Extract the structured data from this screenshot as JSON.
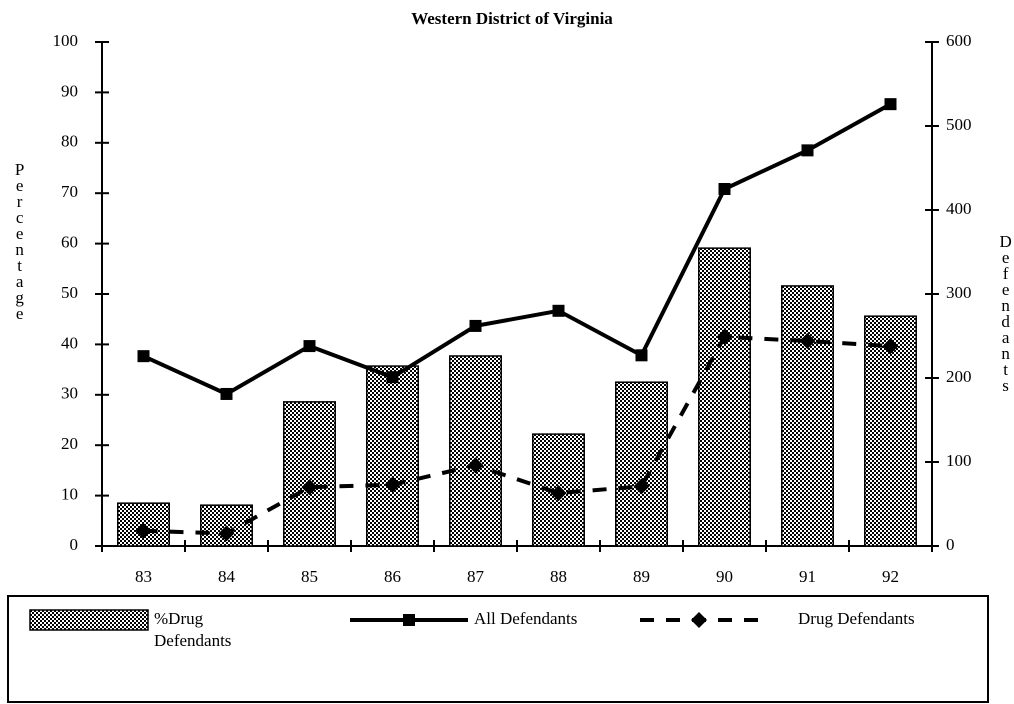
{
  "chart_data": {
    "type": "bar_line",
    "title": "Western District of Virginia",
    "y_label": "Percentage",
    "y2_label": "Defendants",
    "categories": [
      "83",
      "84",
      "85",
      "86",
      "87",
      "88",
      "89",
      "90",
      "91",
      "92"
    ],
    "series": [
      {
        "name": "%Drug Defendants",
        "type": "bar",
        "color": "#000000",
        "values": [
          8.5,
          8.1,
          28.6,
          35.7,
          37.7,
          22.2,
          32.5,
          59.1,
          51.6,
          45.6
        ]
      },
      {
        "name": "All Defendants",
        "type": "line",
        "axis": "y2",
        "color": "#000000",
        "marker": "square",
        "values": [
          226,
          181,
          238,
          201,
          262,
          280,
          227,
          425,
          471,
          526
        ]
      },
      {
        "name": "Drug Defendants",
        "type": "line",
        "axis": "y2",
        "color": "#000000",
        "marker": "diamond",
        "dashed": true,
        "values": [
          18,
          15,
          70,
          73,
          96,
          63,
          71,
          249,
          244,
          238
        ]
      }
    ],
    "ylim": [
      0,
      100
    ],
    "yticks": [
      0,
      10,
      20,
      30,
      40,
      50,
      60,
      70,
      80,
      90,
      100
    ],
    "y2lim": [
      0,
      600
    ],
    "y2ticks": [
      0,
      100,
      200,
      300,
      400,
      500,
      600
    ]
  }
}
